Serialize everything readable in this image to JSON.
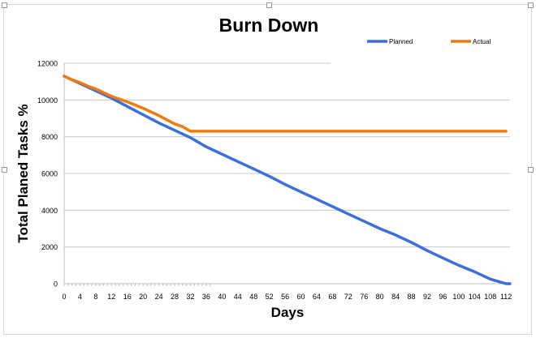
{
  "chart_data": {
    "type": "line",
    "title": "Burn Down",
    "xlabel": "Days",
    "ylabel": "Total Planed Tasks %",
    "ylim": [
      0,
      12000
    ],
    "y_ticks": [
      0,
      2000,
      4000,
      6000,
      8000,
      10000,
      12000
    ],
    "xlim": [
      0,
      113
    ],
    "x_ticks": [
      0,
      4,
      8,
      12,
      16,
      20,
      24,
      28,
      32,
      36,
      40,
      44,
      48,
      52,
      56,
      60,
      64,
      68,
      72,
      76,
      80,
      84,
      88,
      92,
      96,
      100,
      104,
      108,
      112
    ],
    "grid": true,
    "legend": "top-right",
    "series": [
      {
        "name": "Planned",
        "color": "#3c6fdc",
        "x": [
          0,
          4,
          8,
          12,
          16,
          20,
          24,
          28,
          32,
          36,
          40,
          44,
          48,
          52,
          56,
          60,
          64,
          68,
          72,
          76,
          80,
          84,
          88,
          92,
          96,
          100,
          104,
          108,
          112,
          113
        ],
        "values": [
          11300,
          10900,
          10500,
          10100,
          9650,
          9200,
          8750,
          8350,
          7950,
          7450,
          7050,
          6650,
          6250,
          5850,
          5400,
          5000,
          4600,
          4200,
          3800,
          3400,
          3000,
          2650,
          2250,
          1800,
          1400,
          1000,
          650,
          250,
          0,
          0
        ]
      },
      {
        "name": "Actual",
        "color": "#f07a10",
        "x": [
          0,
          2,
          4,
          6,
          8,
          10,
          12,
          16,
          20,
          24,
          28,
          30,
          32,
          34,
          40,
          60,
          80,
          100,
          112
        ],
        "values": [
          11300,
          11100,
          10950,
          10750,
          10600,
          10400,
          10200,
          9900,
          9550,
          9150,
          8700,
          8550,
          8300,
          8300,
          8300,
          8300,
          8300,
          8300,
          8300
        ]
      }
    ]
  }
}
